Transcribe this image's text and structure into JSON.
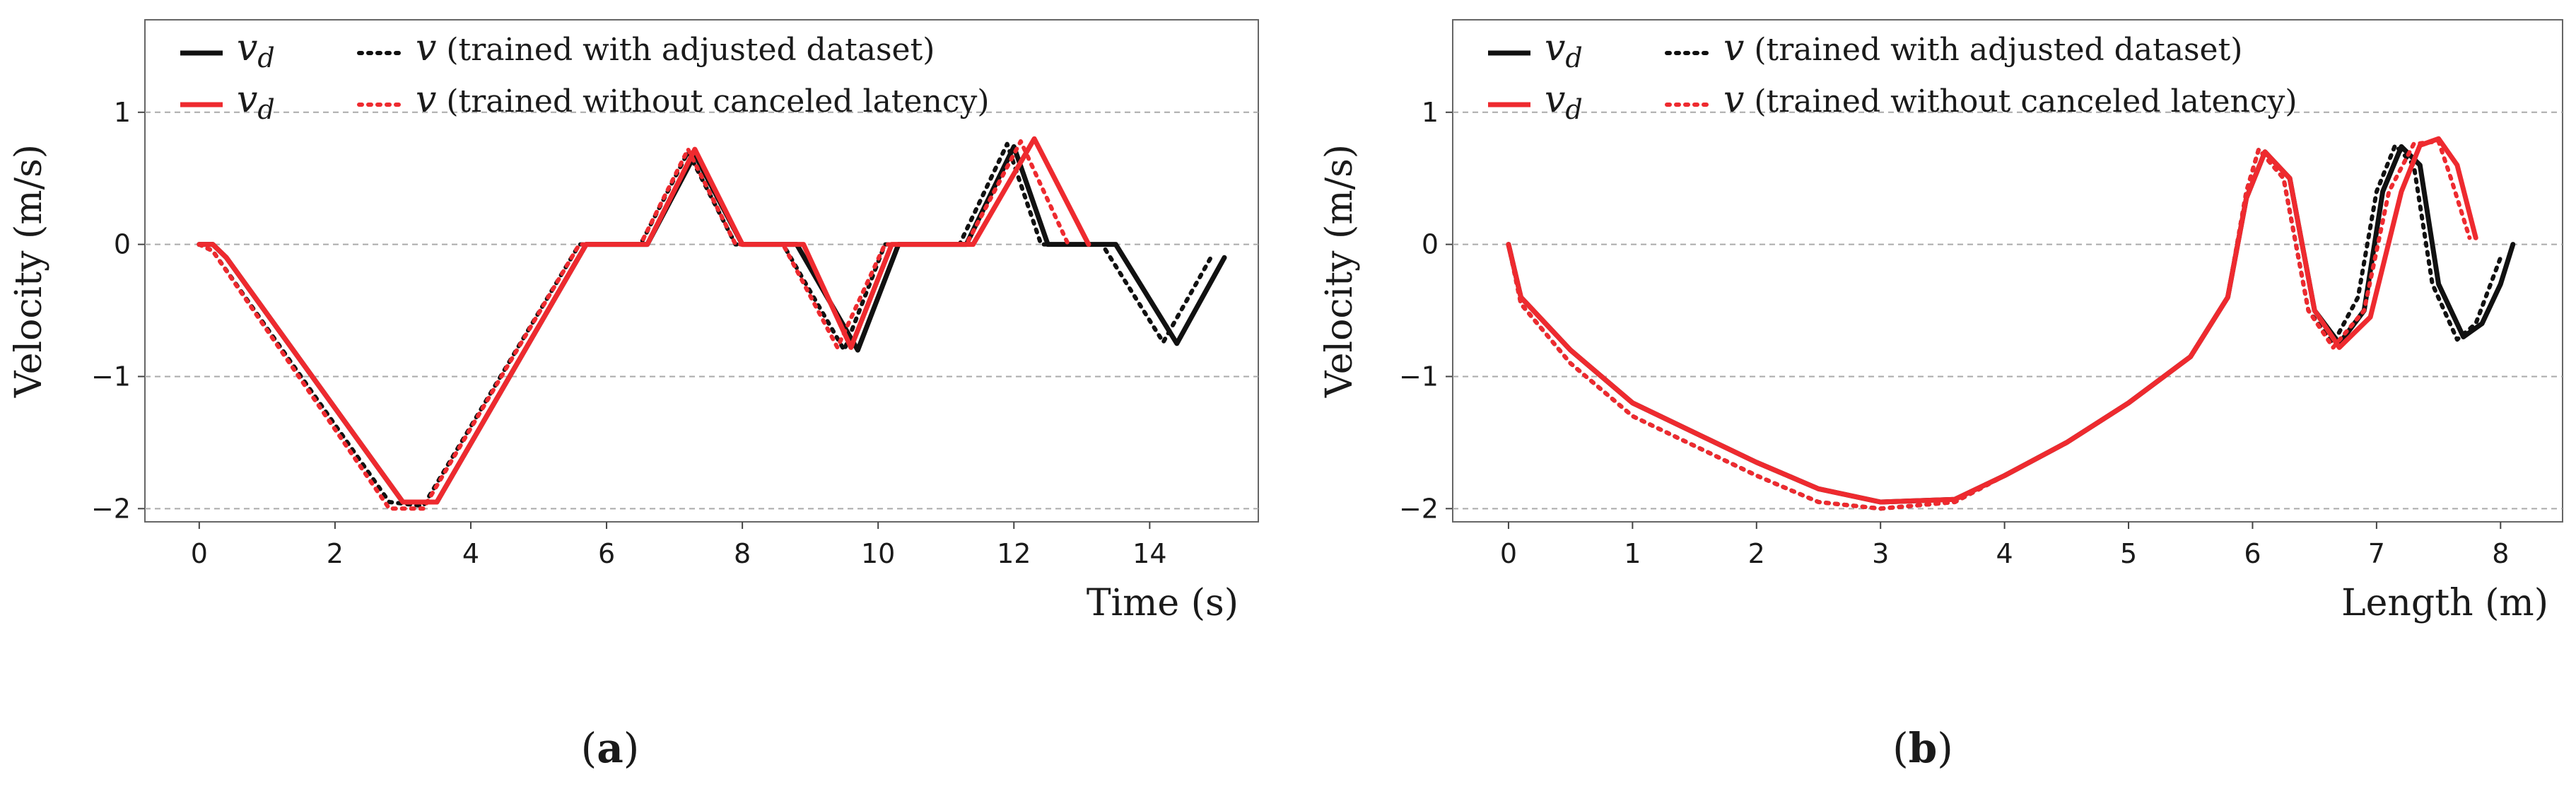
{
  "colors": {
    "black": "#111111",
    "red": "#ee2a2f",
    "grid": "#aaaaaa",
    "frame": "#666666"
  },
  "chart_data": [
    {
      "type": "line",
      "panel_label": "a",
      "xlabel": "Time (s)",
      "ylabel": "Velocity (m/s)",
      "xlim": [
        -0.8,
        15.6
      ],
      "ylim": [
        -2.1,
        1.7
      ],
      "xticks": [
        0,
        2,
        4,
        6,
        8,
        10,
        12,
        14
      ],
      "xtick_labels": [
        "0",
        "2",
        "4",
        "6",
        "8",
        "10",
        "12",
        "14"
      ],
      "yticks": [
        1,
        0,
        -1,
        -2
      ],
      "ytick_labels": [
        "1",
        "0",
        "−1",
        "−2"
      ],
      "grid": "horizontal dashed",
      "legend": [
        {
          "symbol": "v",
          "sub": "d",
          "text": "",
          "color": "black",
          "style": "solid"
        },
        {
          "symbol": "v",
          "sub": "",
          "text": " (trained with adjusted dataset)",
          "color": "black",
          "style": "dotted"
        },
        {
          "symbol": "v",
          "sub": "d",
          "text": "",
          "color": "red",
          "style": "solid"
        },
        {
          "symbol": "v",
          "sub": "",
          "text": " (trained without canceled latency)",
          "color": "red",
          "style": "dotted"
        }
      ],
      "series": [
        {
          "name": "v_d (adjusted dataset)",
          "color": "black",
          "style": "solid",
          "points": [
            [
              0,
              0
            ],
            [
              0.2,
              0
            ],
            [
              0.4,
              -0.1
            ],
            [
              3,
              -1.95
            ],
            [
              3.5,
              -1.95
            ],
            [
              5.7,
              0
            ],
            [
              6.6,
              0
            ],
            [
              7.3,
              0.68
            ],
            [
              8,
              0
            ],
            [
              8.8,
              0
            ],
            [
              9.7,
              -0.8
            ],
            [
              10.3,
              0
            ],
            [
              11.3,
              0
            ],
            [
              12,
              0.74
            ],
            [
              12.5,
              0
            ],
            [
              13.5,
              0
            ],
            [
              14.4,
              -0.75
            ],
            [
              15.1,
              -0.1
            ]
          ]
        },
        {
          "name": "v (trained with adjusted dataset)",
          "color": "black",
          "style": "dotted",
          "points": [
            [
              0,
              0
            ],
            [
              0.2,
              -0.05
            ],
            [
              2.8,
              -1.95
            ],
            [
              3.3,
              -1.98
            ],
            [
              5.6,
              0
            ],
            [
              6.5,
              0
            ],
            [
              7.2,
              0.7
            ],
            [
              7.9,
              0
            ],
            [
              8.6,
              0
            ],
            [
              9.5,
              -0.8
            ],
            [
              10.1,
              0
            ],
            [
              11.2,
              0
            ],
            [
              11.9,
              0.76
            ],
            [
              12.4,
              0
            ],
            [
              13.3,
              0
            ],
            [
              14.2,
              -0.74
            ],
            [
              14.9,
              -0.1
            ]
          ]
        },
        {
          "name": "v_d (without canceled latency)",
          "color": "red",
          "style": "solid",
          "points": [
            [
              0,
              0
            ],
            [
              0.2,
              0
            ],
            [
              0.4,
              -0.1
            ],
            [
              3,
              -1.95
            ],
            [
              3.5,
              -1.95
            ],
            [
              5.7,
              0
            ],
            [
              6.6,
              0
            ],
            [
              7.3,
              0.72
            ],
            [
              8,
              0
            ],
            [
              8.9,
              0
            ],
            [
              9.6,
              -0.78
            ],
            [
              10.2,
              0
            ],
            [
              11.4,
              0
            ],
            [
              12.3,
              0.8
            ],
            [
              13.1,
              0
            ]
          ]
        },
        {
          "name": "v (trained without canceled latency)",
          "color": "red",
          "style": "dotted",
          "points": [
            [
              0,
              0
            ],
            [
              0.2,
              -0.05
            ],
            [
              2.8,
              -2
            ],
            [
              3.3,
              -2
            ],
            [
              5.6,
              0
            ],
            [
              6.5,
              0
            ],
            [
              7.2,
              0.72
            ],
            [
              7.9,
              0
            ],
            [
              8.6,
              0
            ],
            [
              9.4,
              -0.78
            ],
            [
              10.1,
              0
            ],
            [
              11.3,
              0
            ],
            [
              12.1,
              0.78
            ],
            [
              12.8,
              0
            ]
          ]
        }
      ]
    },
    {
      "type": "line",
      "panel_label": "b",
      "xlabel": "Length (m)",
      "ylabel": "Velocity (m/s)",
      "xlim": [
        -0.45,
        8.5
      ],
      "ylim": [
        -2.1,
        1.7
      ],
      "xticks": [
        0,
        1,
        2,
        3,
        4,
        5,
        6,
        7,
        8
      ],
      "xtick_labels": [
        "0",
        "1",
        "2",
        "3",
        "4",
        "5",
        "6",
        "7",
        "8"
      ],
      "yticks": [
        1,
        0,
        -1,
        -2
      ],
      "ytick_labels": [
        "1",
        "0",
        "−1",
        "−2"
      ],
      "grid": "horizontal dashed",
      "legend": [
        {
          "symbol": "v",
          "sub": "d",
          "text": "",
          "color": "black",
          "style": "solid"
        },
        {
          "symbol": "v",
          "sub": "",
          "text": " (trained with adjusted dataset)",
          "color": "black",
          "style": "dotted"
        },
        {
          "symbol": "v",
          "sub": "d",
          "text": "",
          "color": "red",
          "style": "solid"
        },
        {
          "symbol": "v",
          "sub": "",
          "text": " (trained without canceled latency)",
          "color": "red",
          "style": "dotted"
        }
      ],
      "series": [
        {
          "name": "v_d (adjusted dataset)",
          "color": "black",
          "style": "solid",
          "points": [
            [
              0,
              0
            ],
            [
              0.1,
              -0.4
            ],
            [
              0.5,
              -0.8
            ],
            [
              1,
              -1.2
            ],
            [
              2,
              -1.65
            ],
            [
              2.5,
              -1.85
            ],
            [
              3,
              -1.95
            ],
            [
              3.6,
              -1.93
            ],
            [
              4,
              -1.75
            ],
            [
              4.5,
              -1.5
            ],
            [
              5,
              -1.2
            ],
            [
              5.5,
              -0.85
            ],
            [
              5.8,
              -0.4
            ],
            [
              5.95,
              0.35
            ],
            [
              6.1,
              0.7
            ],
            [
              6.3,
              0.5
            ],
            [
              6.5,
              -0.5
            ],
            [
              6.7,
              -0.75
            ],
            [
              6.9,
              -0.5
            ],
            [
              7.05,
              0.4
            ],
            [
              7.2,
              0.74
            ],
            [
              7.35,
              0.6
            ],
            [
              7.5,
              -0.3
            ],
            [
              7.7,
              -0.7
            ],
            [
              7.85,
              -0.6
            ],
            [
              8,
              -0.3
            ],
            [
              8.1,
              0
            ]
          ]
        },
        {
          "name": "v (trained with adjusted dataset)",
          "color": "black",
          "style": "dotted",
          "points": [
            [
              0,
              0
            ],
            [
              0.1,
              -0.45
            ],
            [
              0.5,
              -0.9
            ],
            [
              1,
              -1.3
            ],
            [
              2,
              -1.75
            ],
            [
              2.5,
              -1.95
            ],
            [
              3,
              -2
            ],
            [
              3.6,
              -1.95
            ],
            [
              4,
              -1.75
            ],
            [
              4.5,
              -1.5
            ],
            [
              5,
              -1.2
            ],
            [
              5.5,
              -0.85
            ],
            [
              5.8,
              -0.4
            ],
            [
              5.95,
              0.4
            ],
            [
              6.05,
              0.72
            ],
            [
              6.25,
              0.5
            ],
            [
              6.45,
              -0.5
            ],
            [
              6.65,
              -0.75
            ],
            [
              6.85,
              -0.4
            ],
            [
              7,
              0.4
            ],
            [
              7.15,
              0.75
            ],
            [
              7.3,
              0.6
            ],
            [
              7.45,
              -0.3
            ],
            [
              7.65,
              -0.72
            ],
            [
              7.8,
              -0.6
            ],
            [
              8,
              -0.1
            ]
          ]
        },
        {
          "name": "v_d (without canceled latency)",
          "color": "red",
          "style": "solid",
          "points": [
            [
              0,
              0
            ],
            [
              0.1,
              -0.4
            ],
            [
              0.5,
              -0.8
            ],
            [
              1,
              -1.2
            ],
            [
              2,
              -1.65
            ],
            [
              2.5,
              -1.85
            ],
            [
              3,
              -1.95
            ],
            [
              3.6,
              -1.93
            ],
            [
              4,
              -1.75
            ],
            [
              4.5,
              -1.5
            ],
            [
              5,
              -1.2
            ],
            [
              5.5,
              -0.85
            ],
            [
              5.8,
              -0.4
            ],
            [
              5.95,
              0.35
            ],
            [
              6.1,
              0.7
            ],
            [
              6.3,
              0.5
            ],
            [
              6.5,
              -0.5
            ],
            [
              6.7,
              -0.78
            ],
            [
              6.95,
              -0.55
            ],
            [
              7.2,
              0.4
            ],
            [
              7.35,
              0.75
            ],
            [
              7.5,
              0.8
            ],
            [
              7.65,
              0.6
            ],
            [
              7.8,
              0.05
            ]
          ]
        },
        {
          "name": "v (trained without canceled latency)",
          "color": "red",
          "style": "dotted",
          "points": [
            [
              0,
              0
            ],
            [
              0.1,
              -0.45
            ],
            [
              0.5,
              -0.9
            ],
            [
              1,
              -1.3
            ],
            [
              2,
              -1.75
            ],
            [
              2.5,
              -1.95
            ],
            [
              3,
              -2
            ],
            [
              3.6,
              -1.95
            ],
            [
              4,
              -1.75
            ],
            [
              4.5,
              -1.5
            ],
            [
              5,
              -1.2
            ],
            [
              5.5,
              -0.85
            ],
            [
              5.8,
              -0.4
            ],
            [
              5.95,
              0.4
            ],
            [
              6.05,
              0.72
            ],
            [
              6.25,
              0.5
            ],
            [
              6.45,
              -0.5
            ],
            [
              6.65,
              -0.78
            ],
            [
              6.9,
              -0.5
            ],
            [
              7.1,
              0.4
            ],
            [
              7.3,
              0.76
            ],
            [
              7.5,
              0.78
            ],
            [
              7.6,
              0.5
            ],
            [
              7.75,
              0.05
            ]
          ]
        }
      ]
    }
  ]
}
